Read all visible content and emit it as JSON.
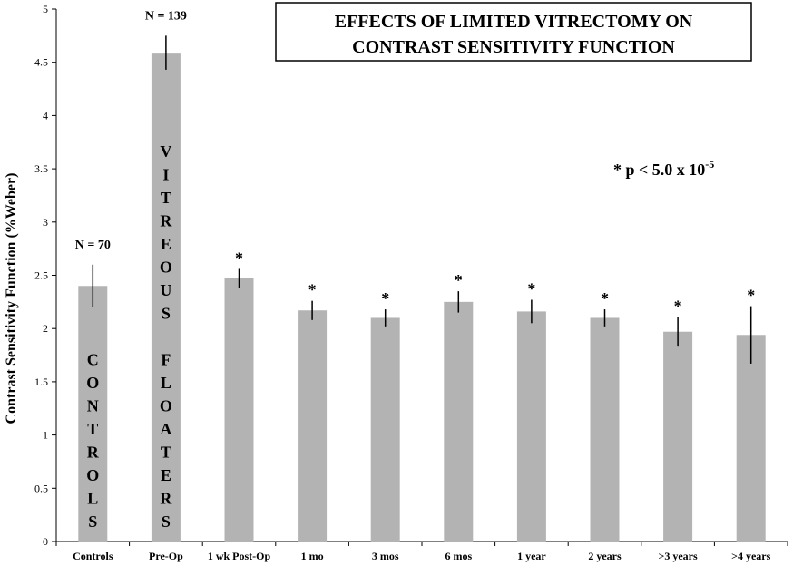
{
  "chart_data": {
    "type": "bar",
    "title_lines": [
      "EFFECTS OF LIMITED VITRECTOMY ON",
      "CONTRAST SENSITIVITY FUNCTION"
    ],
    "ylabel": "Contrast Sensitivity Function (%Weber)",
    "xlabel": "",
    "ylim": [
      0,
      5
    ],
    "yticks": [
      "0",
      "0.5",
      "1",
      "1.5",
      "2",
      "2.5",
      "3",
      "3.5",
      "4",
      "4.5",
      "5"
    ],
    "grid": false,
    "bar_color": "#b3b3b3",
    "categories": [
      "Controls",
      "Pre-Op",
      "1 wk Post-Op",
      "1 mo",
      "3 mos",
      "6 mos",
      "1 year",
      "2 years",
      ">3 years",
      ">4 years"
    ],
    "values": [
      2.4,
      4.59,
      2.47,
      2.17,
      2.1,
      2.25,
      2.16,
      2.1,
      1.97,
      1.94
    ],
    "error": [
      0.2,
      0.16,
      0.09,
      0.09,
      0.08,
      0.1,
      0.11,
      0.08,
      0.14,
      0.27
    ],
    "bar_labels": [
      "CONTROLS",
      "VITREOUS FLOATERS",
      "",
      "",
      "",
      "",
      "",
      "",
      "",
      ""
    ],
    "n_labels": [
      "N = 70",
      "N = 139",
      "",
      "",
      "",
      "",
      "",
      "",
      "",
      ""
    ],
    "significance_marks": [
      "",
      "",
      "*",
      "*",
      "*",
      "*",
      "*",
      "*",
      "*",
      "*"
    ],
    "annotation": {
      "prefix": "* p <  5.0 x 10",
      "exponent": "-5"
    }
  }
}
